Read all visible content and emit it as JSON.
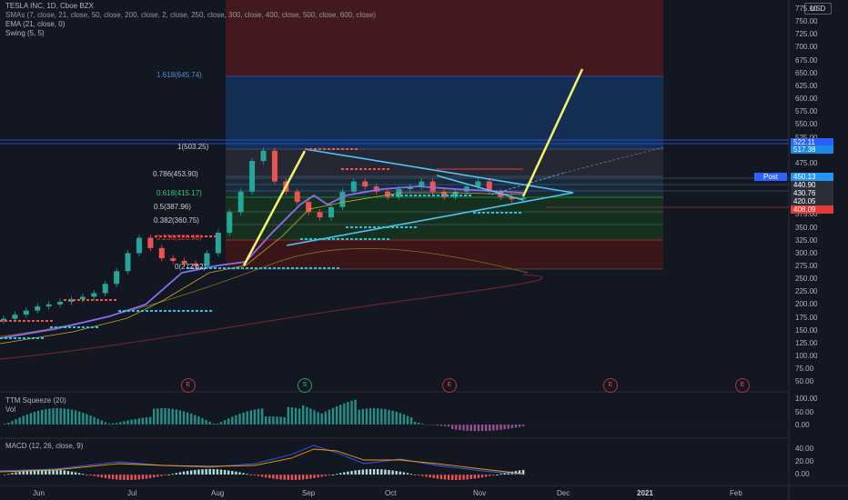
{
  "legend": {
    "title": "TESLA INC, 1D, Cboe BZX",
    "sma": "SMAs (7, close, 21, close, 50, close, 200, close, 2, close, 250, close, 300, close, 400, close, 500, close, 600, close)",
    "ema": "EMA (21, close, 0)",
    "swing": "Swing (5, 5)"
  },
  "currency_button": "USD",
  "post_button": "Post",
  "price_axis": [
    "775.00",
    "750.00",
    "725.00",
    "700.00",
    "675.00",
    "650.00",
    "625.00",
    "600.00",
    "575.00",
    "550.00",
    "525.00",
    "500.00",
    "475.00",
    "450.00",
    "425.00",
    "400.00",
    "375.00",
    "350.00",
    "325.00",
    "300.00",
    "275.00",
    "250.00",
    "225.00",
    "200.00",
    "175.00",
    "150.00",
    "125.00",
    "100.00",
    "75.00",
    "50.00"
  ],
  "price_tags": [
    {
      "label": "522.11",
      "color": "#2962ff"
    },
    {
      "label": "517.38",
      "color": "#1e88e5"
    },
    {
      "label": "450.13",
      "color": "#2196f3"
    },
    {
      "label": "440.90",
      "color": "#2a2e39"
    },
    {
      "label": "430.76",
      "color": "#2a2e39"
    },
    {
      "label": "420.05",
      "color": "#2a2e39"
    },
    {
      "label": "408.09",
      "color": "#e53935"
    }
  ],
  "fib_levels": [
    {
      "label": "1.618(645.74)",
      "color": "#4a90d9"
    },
    {
      "label": "1(503.25)",
      "color": "#cfcfcf"
    },
    {
      "label": "0.786(453.90)",
      "color": "#cfcfcf"
    },
    {
      "label": "0.618(415.17)",
      "color": "#2ecc71"
    },
    {
      "label": "0.5(387.96)",
      "color": "#cfcfcf"
    },
    {
      "label": "0.382(360.75)",
      "color": "#cfcfcf"
    },
    {
      "label": "0.236(326.90)",
      "color": "#e53935"
    },
    {
      "label": "0(272.62)",
      "color": "#cfcfcf"
    }
  ],
  "earnings_markers": [
    {
      "label": "E",
      "kind": "earnings"
    },
    {
      "label": "S",
      "kind": "split"
    },
    {
      "label": "E",
      "kind": "earnings"
    },
    {
      "label": "E",
      "kind": "earnings"
    },
    {
      "label": "E",
      "kind": "earnings"
    }
  ],
  "squeeze": {
    "title": "TTM Squeeze (20)",
    "vol": "Vol",
    "axis": [
      "100.00",
      "50.00",
      "0.00"
    ]
  },
  "macd": {
    "title": "MACD (12, 26, close, 9)",
    "axis": [
      "40.00",
      "20.00",
      "0.00"
    ]
  },
  "time_axis": [
    "Jun",
    "Jul",
    "Aug",
    "Sep",
    "Oct",
    "Nov",
    "Dec",
    "2021",
    "Feb"
  ],
  "colors": {
    "bg": "#131722",
    "up": "#26a69a",
    "down": "#ef5350",
    "trend": "#4fc3f7",
    "target": "#f5f56b",
    "fib_ext": "#2962ff"
  },
  "chart_data": {
    "type": "candlestick",
    "title": "TESLA INC, 1D, Cboe BZX",
    "ylim": [
      40,
      780
    ],
    "x_labels": [
      "Jun",
      "Jul",
      "Aug",
      "Sep",
      "Oct",
      "Nov",
      "Dec",
      "2021",
      "Feb"
    ],
    "fib_retracement": {
      "1.618": 645.74,
      "1": 503.25,
      "0.786": 453.9,
      "0.618": 415.17,
      "0.5": 387.96,
      "0.382": 360.75,
      "0.236": 326.9,
      "0": 272.62
    },
    "close_approx": [
      172,
      180,
      188,
      196,
      200,
      205,
      210,
      215,
      222,
      240,
      265,
      300,
      330,
      310,
      290,
      285,
      280,
      275,
      300,
      340,
      380,
      420,
      480,
      500,
      440,
      420,
      400,
      380,
      370,
      390,
      420,
      440,
      430,
      420,
      410,
      425,
      430,
      440,
      420,
      410,
      420,
      430,
      440,
      420,
      410,
      405,
      408
    ]
  }
}
